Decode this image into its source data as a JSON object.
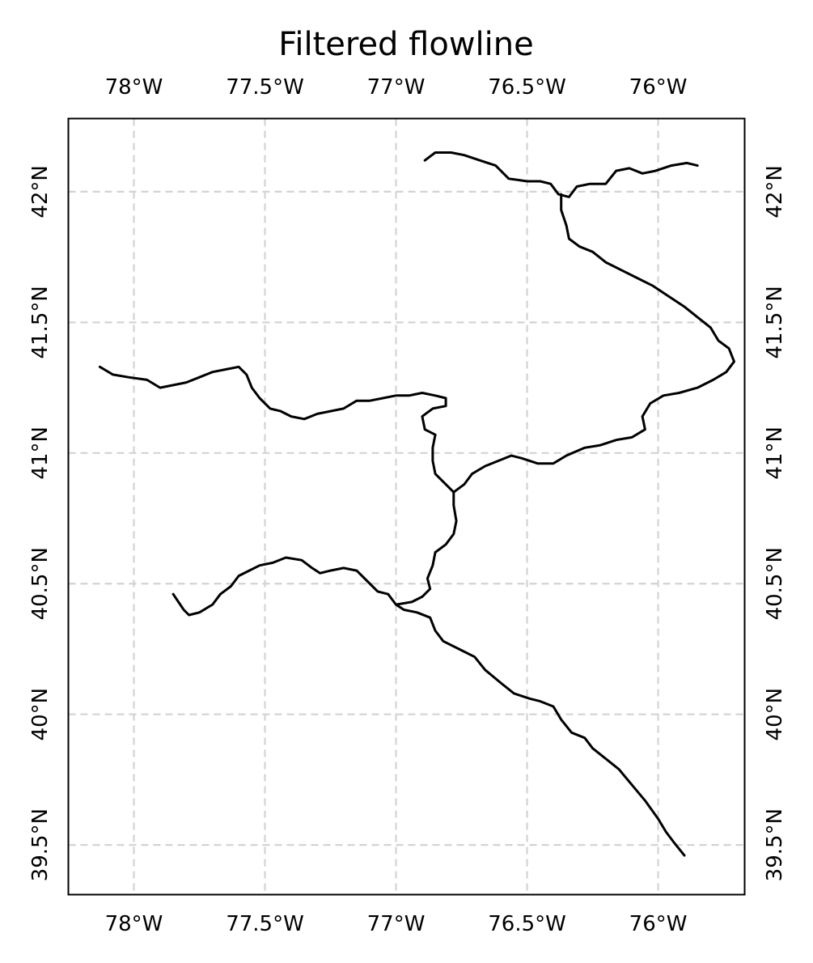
{
  "title": "Filtered flowline",
  "map": {
    "lon_range": [
      -78.25,
      -75.67
    ],
    "lat_range": [
      39.31,
      42.28
    ],
    "gridlines": true,
    "gridline_style": "dashed",
    "gridline_color": "#d3d3d3",
    "frame_color": "#000000",
    "line_color": "#000000",
    "lon_ticks": [
      {
        "value": -78.0,
        "label": "78°W"
      },
      {
        "value": -77.5,
        "label": "77.5°W"
      },
      {
        "value": -77.0,
        "label": "77°W"
      },
      {
        "value": -76.5,
        "label": "76.5°W"
      },
      {
        "value": -76.0,
        "label": "76°W"
      }
    ],
    "lat_ticks": [
      {
        "value": 42.0,
        "label": "42°N"
      },
      {
        "value": 41.5,
        "label": "41.5°N"
      },
      {
        "value": 41.0,
        "label": "41°N"
      },
      {
        "value": 40.5,
        "label": "40.5°N"
      },
      {
        "value": 40.0,
        "label": "40°N"
      },
      {
        "value": 39.5,
        "label": "39.5°N"
      }
    ],
    "flowlines": [
      {
        "id": "north-branch-upper",
        "points": [
          [
            -76.89,
            42.12
          ],
          [
            -76.85,
            42.15
          ],
          [
            -76.79,
            42.15
          ],
          [
            -76.74,
            42.14
          ],
          [
            -76.68,
            42.12
          ],
          [
            -76.62,
            42.1
          ],
          [
            -76.57,
            42.05
          ],
          [
            -76.5,
            42.04
          ],
          [
            -76.45,
            42.04
          ],
          [
            -76.41,
            42.03
          ],
          [
            -76.38,
            41.99
          ],
          [
            -76.34,
            41.98
          ],
          [
            -76.31,
            42.02
          ],
          [
            -76.26,
            42.03
          ],
          [
            -76.2,
            42.03
          ],
          [
            -76.16,
            42.08
          ],
          [
            -76.11,
            42.09
          ],
          [
            -76.06,
            42.07
          ],
          [
            -76.01,
            42.08
          ],
          [
            -75.95,
            42.1
          ],
          [
            -75.89,
            42.11
          ],
          [
            -75.85,
            42.1
          ]
        ]
      },
      {
        "id": "north-branch-main",
        "points": [
          [
            -76.37,
            41.99
          ],
          [
            -76.37,
            41.93
          ],
          [
            -76.35,
            41.87
          ],
          [
            -76.34,
            41.82
          ],
          [
            -76.3,
            41.79
          ],
          [
            -76.25,
            41.77
          ],
          [
            -76.2,
            41.73
          ],
          [
            -76.14,
            41.7
          ],
          [
            -76.08,
            41.67
          ],
          [
            -76.02,
            41.64
          ],
          [
            -75.96,
            41.6
          ],
          [
            -75.9,
            41.56
          ],
          [
            -75.85,
            41.52
          ],
          [
            -75.8,
            41.48
          ],
          [
            -75.77,
            41.43
          ],
          [
            -75.73,
            41.4
          ],
          [
            -75.71,
            41.35
          ],
          [
            -75.74,
            41.31
          ],
          [
            -75.79,
            41.28
          ],
          [
            -75.85,
            41.25
          ],
          [
            -75.92,
            41.23
          ],
          [
            -75.98,
            41.22
          ],
          [
            -76.03,
            41.19
          ],
          [
            -76.06,
            41.14
          ],
          [
            -76.05,
            41.09
          ],
          [
            -76.1,
            41.06
          ],
          [
            -76.16,
            41.05
          ],
          [
            -76.22,
            41.03
          ],
          [
            -76.28,
            41.02
          ],
          [
            -76.35,
            40.99
          ],
          [
            -76.4,
            40.96
          ],
          [
            -76.46,
            40.96
          ],
          [
            -76.52,
            40.98
          ],
          [
            -76.56,
            40.99
          ],
          [
            -76.61,
            40.97
          ],
          [
            -76.66,
            40.95
          ],
          [
            -76.71,
            40.92
          ],
          [
            -76.74,
            40.88
          ],
          [
            -76.78,
            40.85
          ]
        ]
      },
      {
        "id": "west-branch",
        "points": [
          [
            -78.13,
            41.33
          ],
          [
            -78.08,
            41.3
          ],
          [
            -78.02,
            41.29
          ],
          [
            -77.95,
            41.28
          ],
          [
            -77.9,
            41.25
          ],
          [
            -77.85,
            41.26
          ],
          [
            -77.8,
            41.27
          ],
          [
            -77.75,
            41.29
          ],
          [
            -77.7,
            41.31
          ],
          [
            -77.65,
            41.32
          ],
          [
            -77.6,
            41.33
          ],
          [
            -77.57,
            41.3
          ],
          [
            -77.55,
            41.25
          ],
          [
            -77.52,
            41.21
          ],
          [
            -77.48,
            41.17
          ],
          [
            -77.44,
            41.16
          ],
          [
            -77.4,
            41.14
          ],
          [
            -77.35,
            41.13
          ],
          [
            -77.3,
            41.15
          ],
          [
            -77.25,
            41.16
          ],
          [
            -77.2,
            41.17
          ],
          [
            -77.15,
            41.2
          ],
          [
            -77.1,
            41.2
          ],
          [
            -77.05,
            41.21
          ],
          [
            -77.0,
            41.22
          ],
          [
            -76.95,
            41.22
          ],
          [
            -76.9,
            41.23
          ],
          [
            -76.85,
            41.22
          ],
          [
            -76.81,
            41.21
          ],
          [
            -76.81,
            41.18
          ],
          [
            -76.86,
            41.17
          ],
          [
            -76.9,
            41.14
          ],
          [
            -76.89,
            41.09
          ],
          [
            -76.85,
            41.07
          ],
          [
            -76.86,
            41.02
          ],
          [
            -76.86,
            40.97
          ],
          [
            -76.85,
            40.92
          ],
          [
            -76.82,
            40.89
          ],
          [
            -76.78,
            40.85
          ]
        ]
      },
      {
        "id": "main-stem",
        "points": [
          [
            -76.78,
            40.85
          ],
          [
            -76.78,
            40.8
          ],
          [
            -76.77,
            40.74
          ],
          [
            -76.78,
            40.69
          ],
          [
            -76.81,
            40.65
          ],
          [
            -76.85,
            40.62
          ],
          [
            -76.86,
            40.57
          ],
          [
            -76.88,
            40.52
          ],
          [
            -76.87,
            40.48
          ],
          [
            -76.9,
            40.45
          ],
          [
            -76.94,
            40.43
          ],
          [
            -77.0,
            40.42
          ],
          [
            -76.97,
            40.4
          ],
          [
            -76.92,
            40.39
          ],
          [
            -76.87,
            40.37
          ],
          [
            -76.85,
            40.32
          ],
          [
            -76.82,
            40.28
          ],
          [
            -76.76,
            40.25
          ],
          [
            -76.7,
            40.22
          ],
          [
            -76.66,
            40.17
          ],
          [
            -76.6,
            40.12
          ],
          [
            -76.55,
            40.08
          ],
          [
            -76.49,
            40.06
          ],
          [
            -76.45,
            40.05
          ],
          [
            -76.4,
            40.03
          ],
          [
            -76.37,
            39.98
          ],
          [
            -76.33,
            39.93
          ],
          [
            -76.28,
            39.91
          ],
          [
            -76.25,
            39.87
          ],
          [
            -76.2,
            39.83
          ],
          [
            -76.15,
            39.79
          ],
          [
            -76.1,
            39.73
          ],
          [
            -76.05,
            39.67
          ],
          [
            -76.0,
            39.6
          ],
          [
            -75.97,
            39.55
          ],
          [
            -75.94,
            39.51
          ],
          [
            -75.9,
            39.46
          ]
        ]
      },
      {
        "id": "juniata-branch",
        "points": [
          [
            -77.0,
            40.42
          ],
          [
            -77.03,
            40.46
          ],
          [
            -77.07,
            40.47
          ],
          [
            -77.11,
            40.51
          ],
          [
            -77.15,
            40.55
          ],
          [
            -77.2,
            40.56
          ],
          [
            -77.25,
            40.55
          ],
          [
            -77.29,
            40.54
          ],
          [
            -77.32,
            40.56
          ],
          [
            -77.36,
            40.59
          ],
          [
            -77.42,
            40.6
          ],
          [
            -77.47,
            40.58
          ],
          [
            -77.52,
            40.57
          ],
          [
            -77.56,
            40.55
          ],
          [
            -77.6,
            40.53
          ],
          [
            -77.63,
            40.49
          ],
          [
            -77.67,
            40.46
          ],
          [
            -77.7,
            40.42
          ],
          [
            -77.75,
            40.39
          ],
          [
            -77.79,
            40.38
          ],
          [
            -77.81,
            40.4
          ],
          [
            -77.83,
            40.43
          ],
          [
            -77.85,
            40.46
          ]
        ]
      }
    ]
  }
}
